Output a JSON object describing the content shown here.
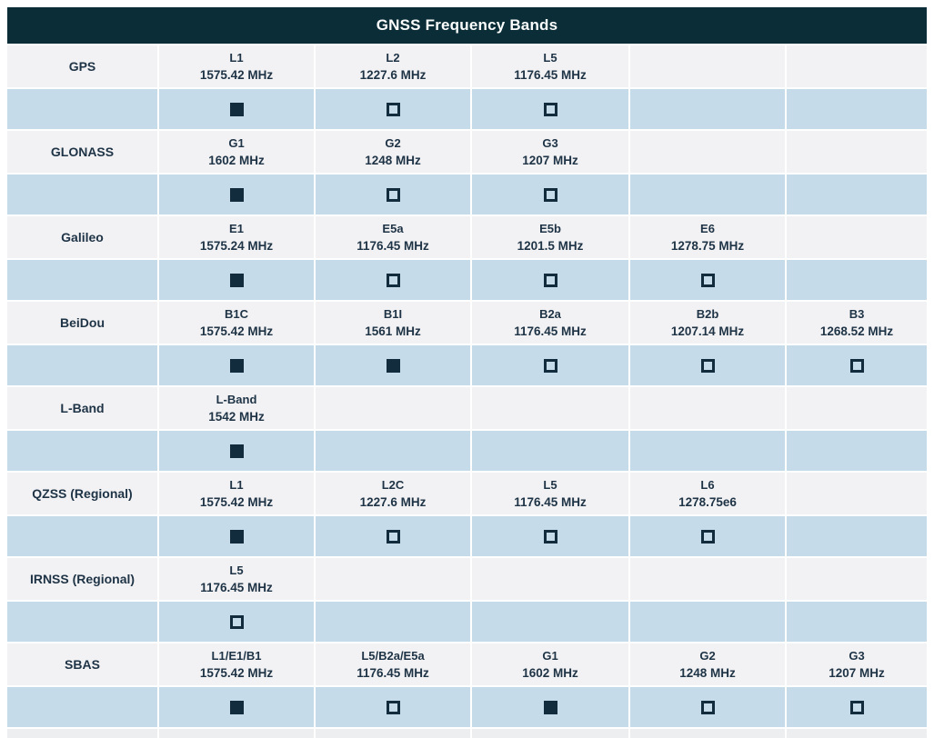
{
  "title": "GNSS Frequency Bands",
  "colors": {
    "header_bg": "#0b2d38",
    "header_text": "#fbfdfd",
    "label_row_bg": "#f2f2f4",
    "checkbox_row_bg": "#c6dbe9",
    "text": "#1e3345",
    "checkbox": "#122c3e"
  },
  "table": {
    "band_columns": 5,
    "systems": [
      {
        "name": "GPS",
        "bands": [
          {
            "label": "L1",
            "freq": "1575.42 MHz",
            "checked": true
          },
          {
            "label": "L2",
            "freq": "1227.6 MHz",
            "checked": false
          },
          {
            "label": "L5",
            "freq": "1176.45 MHz",
            "checked": false
          }
        ]
      },
      {
        "name": "GLONASS",
        "bands": [
          {
            "label": "G1",
            "freq": "1602 MHz",
            "checked": true
          },
          {
            "label": "G2",
            "freq": "1248 MHz",
            "checked": false
          },
          {
            "label": "G3",
            "freq": "1207 MHz",
            "checked": false
          }
        ]
      },
      {
        "name": "Galileo",
        "bands": [
          {
            "label": "E1",
            "freq": "1575.24 MHz",
            "checked": true
          },
          {
            "label": "E5a",
            "freq": "1176.45 MHz",
            "checked": false
          },
          {
            "label": "E5b",
            "freq": "1201.5 MHz",
            "checked": false
          },
          {
            "label": "E6",
            "freq": "1278.75 MHz",
            "checked": false
          }
        ]
      },
      {
        "name": "BeiDou",
        "bands": [
          {
            "label": "B1C",
            "freq": "1575.42 MHz",
            "checked": true
          },
          {
            "label": "B1I",
            "freq": "1561 MHz",
            "checked": true
          },
          {
            "label": "B2a",
            "freq": "1176.45 MHz",
            "checked": false
          },
          {
            "label": "B2b",
            "freq": "1207.14 MHz",
            "checked": false
          },
          {
            "label": "B3",
            "freq": "1268.52 MHz",
            "checked": false
          }
        ]
      },
      {
        "name": "L-Band",
        "bands": [
          {
            "label": "L-Band",
            "freq": "1542 MHz",
            "checked": true
          }
        ]
      },
      {
        "name": "QZSS (Regional)",
        "bands": [
          {
            "label": "L1",
            "freq": "1575.42 MHz",
            "checked": true
          },
          {
            "label": "L2C",
            "freq": "1227.6 MHz",
            "checked": false
          },
          {
            "label": "L5",
            "freq": "1176.45 MHz",
            "checked": false
          },
          {
            "label": "L6",
            "freq": "1278.75e6",
            "checked": false
          }
        ]
      },
      {
        "name": "IRNSS (Regional)",
        "bands": [
          {
            "label": "L5",
            "freq": "1176.45 MHz",
            "checked": false
          }
        ]
      },
      {
        "name": "SBAS",
        "bands": [
          {
            "label": "L1/E1/B1",
            "freq": "1575.42 MHz",
            "checked": true
          },
          {
            "label": "L5/B2a/E5a",
            "freq": "1176.45 MHz",
            "checked": false
          },
          {
            "label": "G1",
            "freq": "1602 MHz",
            "checked": true
          },
          {
            "label": "G2",
            "freq": "1248 MHz",
            "checked": false
          },
          {
            "label": "G3",
            "freq": "1207 MHz",
            "checked": false
          }
        ]
      }
    ]
  }
}
